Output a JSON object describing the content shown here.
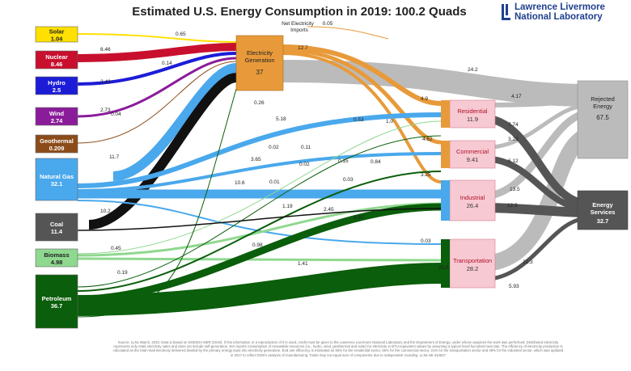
{
  "title": "Estimated U.S. Energy Consumption in 2019: 100.2 Quads",
  "logo": {
    "line1": "Lawrence Livermore",
    "line2": "National Laboratory",
    "mark_color": "#1f3f8f"
  },
  "footer": "Source: LLNL March, 2020. Data is based on DOE/EIA MER (2019). If this information or a reproduction of it is used, credit must be given to the Lawrence Livermore National Laboratory and the Department of Energy, under whose auspices the work was performed. Distributed electricity represents only retail electricity sales and does not include self-generation. EIA reports consumption of renewable resources (i.e., hydro, wind, geothermal and solar) for electricity in BTU-equivalent values by assuming a typical fossil fuel plant heat rate. The efficiency of electricity production is calculated as the total retail electricity delivered divided by the primary energy input into electricity generation. End use efficiency is estimated as 65% for the residential sector, 65% for the commercial sector, 21% for the transportation sector and 49% for the industrial sector, which was updated in 2017 to reflect DOE's analysis of manufacturing. Totals may not equal sum of components due to independent rounding. LLNL-MI-410527",
  "sources": [
    {
      "id": "solar",
      "name": "Solar",
      "value": "1.04",
      "color": "#ffe000",
      "text": "#222"
    },
    {
      "id": "nuclear",
      "name": "Nuclear",
      "value": "8.46",
      "color": "#c8102e",
      "text": "#fff"
    },
    {
      "id": "hydro",
      "name": "Hydro",
      "value": "2.5",
      "color": "#1c1cd8",
      "text": "#fff"
    },
    {
      "id": "wind",
      "name": "Wind",
      "value": "2.74",
      "color": "#8a1c9a",
      "text": "#fff"
    },
    {
      "id": "geothermal",
      "name": "Geothermal",
      "value": "0.209",
      "color": "#8b4c1a",
      "text": "#fff"
    },
    {
      "id": "natural-gas",
      "name": "Natural Gas",
      "value": "32.1",
      "color": "#4aa8ec",
      "text": "#fff"
    },
    {
      "id": "coal",
      "name": "Coal",
      "value": "11.4",
      "color": "#555555",
      "text": "#fff"
    },
    {
      "id": "biomass",
      "name": "Biomass",
      "value": "4.98",
      "color": "#8fd88f",
      "text": "#222"
    },
    {
      "id": "petroleum",
      "name": "Petroleum",
      "value": "36.7",
      "color": "#0b5e0b",
      "text": "#fff"
    }
  ],
  "electricity": {
    "name": "Electricity Generation",
    "value": "37",
    "color": "#e89a3a"
  },
  "net_imports": {
    "label": "Net Electricity Imports",
    "value": "0.05"
  },
  "sectors": [
    {
      "id": "residential",
      "name": "Residential",
      "value": "11.9"
    },
    {
      "id": "commercial",
      "name": "Commercial",
      "value": "9.41"
    },
    {
      "id": "industrial",
      "name": "Industrial",
      "value": "26.4"
    },
    {
      "id": "transportation",
      "name": "Transportation",
      "value": "28.2"
    }
  ],
  "sector_colors": {
    "fill": "#f7c9d2",
    "border": "#d07c90",
    "text": "#b0102a"
  },
  "rejected": {
    "name": "Rejected Energy",
    "value": "67.5",
    "color": "#bbbbbb"
  },
  "services": {
    "name": "Energy Services",
    "value": "32.7",
    "color": "#555555"
  },
  "flow_labels": [
    "0.65",
    "8.46",
    "2.48",
    "2.73",
    "0.14",
    "0.04",
    "11.7",
    "10.2",
    "0.45",
    "0.19",
    "12.7",
    "24.2",
    "4.9",
    "4.62",
    "3.25",
    "0.03",
    "0.26",
    "5.18",
    "0.53",
    "1.0",
    "0.02",
    "0.11",
    "3.65",
    "0.02",
    "0.15",
    "0.84",
    "10.6",
    "0.01",
    "0.03",
    "1.19",
    "2.45",
    "8.87",
    "0.98",
    "1.41",
    "25.8",
    "4.17",
    "7.74",
    "3.29",
    "6.12",
    "13.5",
    "12.9",
    "22.3",
    "5.93"
  ]
}
